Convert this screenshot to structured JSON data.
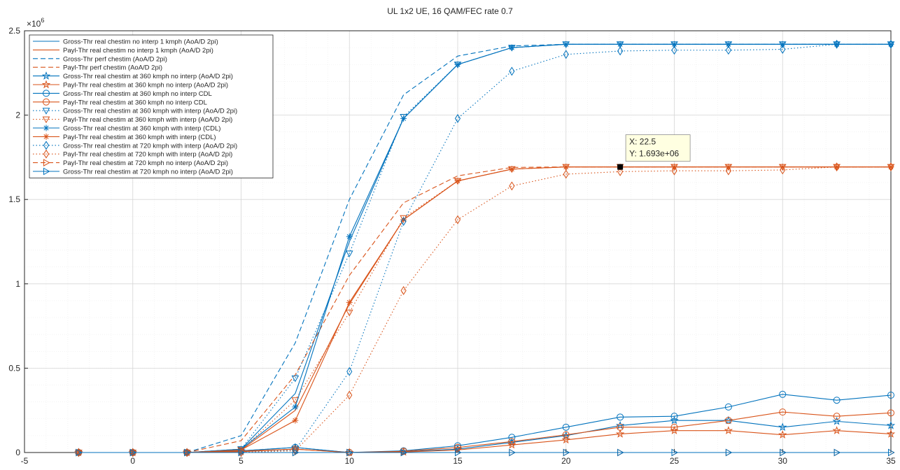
{
  "chart_data": {
    "type": "line",
    "title": "UL 1x2  UE, 16 QAM/FEC rate 0.7",
    "xlabel": "",
    "ylabel": "",
    "exponent_label": "×10",
    "exponent_value": "6",
    "xlim": [
      -5,
      35
    ],
    "ylim": [
      0,
      2500000
    ],
    "x_ticks": [
      -5,
      0,
      5,
      10,
      15,
      20,
      25,
      30,
      35
    ],
    "x_tick_labels": [
      "-5",
      "0",
      "5",
      "10",
      "15",
      "20",
      "25",
      "30",
      "35"
    ],
    "y_ticks": [
      0,
      500000,
      1000000,
      1500000,
      2000000,
      2500000
    ],
    "y_tick_labels": [
      "0",
      "0.5",
      "1",
      "1.5",
      "2",
      "2.5"
    ],
    "grid": true,
    "minor_grid": true,
    "legend_position": "top-left",
    "x": [
      -2.5,
      0,
      2.5,
      5,
      7.5,
      10,
      12.5,
      15,
      17.5,
      20,
      22.5,
      25,
      27.5,
      30,
      32.5,
      35
    ],
    "series": [
      {
        "name": "Gross-Thr real chestim no interp 1 kmph (AoA/D 2pi)",
        "color": "#0072BD",
        "dash": "solid",
        "marker": "none",
        "values": [
          0,
          0,
          0,
          20000,
          350000,
          1250000,
          1980000,
          2300000,
          2400000,
          2420000,
          2420000,
          2420000,
          2420000,
          2420000,
          2420000,
          2420000
        ]
      },
      {
        "name": "Payl-Thr real chestim no interp 1 kmph (AoA/D 2pi)",
        "color": "#D95319",
        "dash": "solid",
        "marker": "none",
        "values": [
          0,
          0,
          0,
          15000,
          250000,
          880000,
          1380000,
          1610000,
          1680000,
          1693000,
          1693000,
          1693000,
          1693000,
          1693000,
          1693000,
          1693000
        ]
      },
      {
        "name": "Gross-Thr perf chestim (AoA/D 2pi)",
        "color": "#0072BD",
        "dash": "dash",
        "marker": "none",
        "values": [
          0,
          0,
          0,
          100000,
          650000,
          1500000,
          2120000,
          2350000,
          2410000,
          2420000,
          2420000,
          2420000,
          2420000,
          2420000,
          2420000,
          2420000
        ]
      },
      {
        "name": "Payl-Thr perf chestim (AoA/D 2pi)",
        "color": "#D95319",
        "dash": "dash",
        "marker": "none",
        "values": [
          0,
          0,
          0,
          70000,
          460000,
          1050000,
          1480000,
          1640000,
          1690000,
          1693000,
          1693000,
          1693000,
          1693000,
          1693000,
          1693000,
          1693000
        ]
      },
      {
        "name": "Gross-Thr real chestim at 360 kmph no interp (AoA/D 2pi)",
        "color": "#0072BD",
        "dash": "solid",
        "marker": "star",
        "values": [
          0,
          0,
          0,
          10000,
          30000,
          0,
          5000,
          20000,
          60000,
          100000,
          160000,
          190000,
          190000,
          150000,
          185000,
          160000
        ]
      },
      {
        "name": "Payl-Thr real chestim at 360 kmph no interp (AoA/D 2pi)",
        "color": "#D95319",
        "dash": "solid",
        "marker": "star",
        "values": [
          0,
          0,
          0,
          5000,
          20000,
          0,
          3000,
          15000,
          45000,
          75000,
          110000,
          130000,
          130000,
          105000,
          130000,
          110000
        ]
      },
      {
        "name": "Gross-Thr real chestim at 360 kmph no interp CDL",
        "color": "#0072BD",
        "dash": "solid",
        "marker": "circle",
        "values": [
          0,
          0,
          0,
          10000,
          30000,
          0,
          10000,
          40000,
          90000,
          150000,
          210000,
          215000,
          270000,
          345000,
          310000,
          340000
        ]
      },
      {
        "name": "Payl-Thr real chestim at 360 kmph no interp CDL",
        "color": "#D95319",
        "dash": "solid",
        "marker": "circle",
        "values": [
          0,
          0,
          0,
          8000,
          20000,
          0,
          7000,
          30000,
          65000,
          105000,
          150000,
          150000,
          190000,
          240000,
          215000,
          235000
        ]
      },
      {
        "name": "Gross-Thr real chestim at 360 kmph with interp (AoA/D 2pi)",
        "color": "#0072BD",
        "dash": "dot",
        "marker": "triangle-down",
        "values": [
          0,
          0,
          0,
          20000,
          440000,
          1180000,
          1990000,
          2300000,
          2400000,
          2420000,
          2420000,
          2420000,
          2420000,
          2420000,
          2420000,
          2420000
        ]
      },
      {
        "name": "Payl-Thr real chestim at 360 kmph with interp (AoA/D 2pi)",
        "color": "#D95319",
        "dash": "dot",
        "marker": "triangle-down",
        "values": [
          0,
          0,
          0,
          15000,
          310000,
          830000,
          1390000,
          1610000,
          1680000,
          1693000,
          1693000,
          1693000,
          1693000,
          1693000,
          1693000,
          1693000
        ]
      },
      {
        "name": "Gross-Thr real chestim at 360 kmph with interp (CDL)",
        "color": "#0072BD",
        "dash": "solid",
        "marker": "asterisk",
        "values": [
          0,
          0,
          0,
          20000,
          270000,
          1280000,
          1980000,
          2300000,
          2400000,
          2420000,
          2420000,
          2420000,
          2420000,
          2420000,
          2420000,
          2420000
        ]
      },
      {
        "name": "Payl-Thr real chestim at 360 kmph with interp (CDL)",
        "color": "#D95319",
        "dash": "solid",
        "marker": "asterisk",
        "values": [
          0,
          0,
          0,
          15000,
          190000,
          890000,
          1380000,
          1610000,
          1680000,
          1693000,
          1693000,
          1693000,
          1693000,
          1693000,
          1693000,
          1693000
        ]
      },
      {
        "name": "Gross-Thr real chestim at 720 kmph with interp (AoA/D 2pi)",
        "color": "#0072BD",
        "dash": "dot",
        "marker": "diamond",
        "values": [
          0,
          0,
          0,
          0,
          15000,
          480000,
          1370000,
          1980000,
          2260000,
          2360000,
          2380000,
          2385000,
          2385000,
          2390000,
          2420000,
          2420000
        ]
      },
      {
        "name": "Payl-Thr real chestim at 720 kmph with interp (AoA/D 2pi)",
        "color": "#D95319",
        "dash": "dot",
        "marker": "diamond",
        "values": [
          0,
          0,
          0,
          0,
          10000,
          340000,
          960000,
          1380000,
          1580000,
          1650000,
          1665000,
          1670000,
          1670000,
          1675000,
          1693000,
          1693000
        ]
      },
      {
        "name": "Payl-Thr real chestim at 720 kmph no interp (AoA/D 2pi)",
        "color": "#D95319",
        "dash": "dash",
        "marker": "triangle-right",
        "values": [
          0,
          0,
          0,
          0,
          0,
          0,
          0,
          0,
          0,
          0,
          0,
          0,
          0,
          0,
          0,
          0
        ]
      },
      {
        "name": "Gross-Thr real chestim at 720 kmph no interp (AoA/D 2pi)",
        "color": "#0072BD",
        "dash": "solid",
        "marker": "triangle-right",
        "values": [
          0,
          0,
          0,
          0,
          0,
          0,
          0,
          0,
          0,
          0,
          0,
          0,
          0,
          0,
          0,
          0
        ]
      }
    ],
    "datatip": {
      "x": 22.5,
      "y": 1693000,
      "x_text": "X: 22.5",
      "y_text": "Y: 1.693e+06"
    }
  }
}
